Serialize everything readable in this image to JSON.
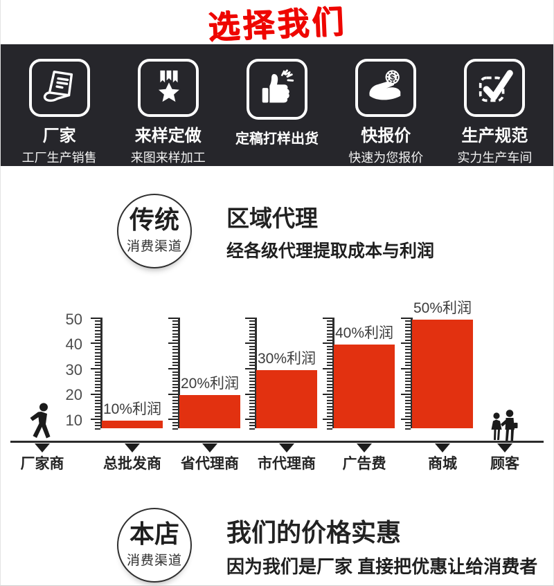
{
  "page_title": "选择我们",
  "banner": {
    "bg_color": "#26262b",
    "items": [
      {
        "icon": "document-icon",
        "label": "厂家",
        "sublabel": "工厂生产销售"
      },
      {
        "icon": "medal-star-icon",
        "label": "来样定做",
        "sublabel": "来图来样加工"
      },
      {
        "icon": "thumbs-up-icon",
        "label": "定稿打样出货",
        "sublabel": ""
      },
      {
        "icon": "hand-coin-icon",
        "label": "快报价",
        "sublabel": "快速为您报价"
      },
      {
        "icon": "checkmark-box-icon",
        "label": "生产规范",
        "sublabel": "实力生产车间"
      }
    ]
  },
  "traditional_section": {
    "badge_title": "传统",
    "badge_subtitle": "消费渠道",
    "heading": "区域代理",
    "subheading": "经各级代理提取成本与利润"
  },
  "chart_data": {
    "type": "bar",
    "bar_color": "#e23110",
    "y_ticks": [
      50,
      40,
      30,
      20,
      10
    ],
    "ylim": [
      7,
      52
    ],
    "grid": false,
    "legend": false,
    "categories": [
      "厂家商",
      "总批发商",
      "省代理商",
      "市代理商",
      "广告费",
      "商城",
      "顾客"
    ],
    "bars": [
      {
        "station": "总批发商",
        "label": "10%利润",
        "value": 10
      },
      {
        "station": "省代理商",
        "label": "20%利润",
        "value": 20
      },
      {
        "station": "市代理商",
        "label": "30%利润",
        "value": 30
      },
      {
        "station": "广告费",
        "label": "40%利润",
        "value": 40
      },
      {
        "station": "商城",
        "label": "50%利润",
        "value": 50
      }
    ]
  },
  "shop_section": {
    "badge_title": "本店",
    "badge_subtitle": "消费渠道",
    "heading": "我们的价格实惠",
    "subheading": "因为我们是厂家  直接把优惠让给消费者"
  }
}
